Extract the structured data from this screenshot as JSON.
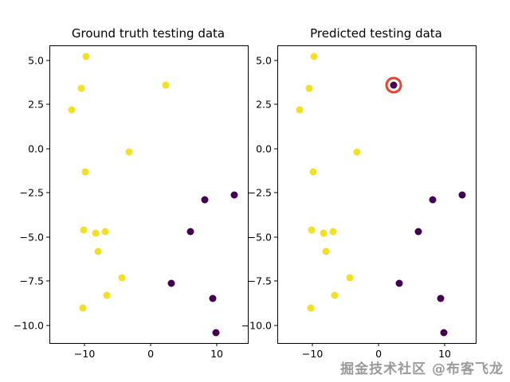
{
  "figure": {
    "background": "#ffffff",
    "watermark": {
      "text": "掘金技术社区 @布客飞龙",
      "color": "#9a9a9a"
    }
  },
  "chart_data": [
    {
      "id": "ground-truth",
      "type": "scatter",
      "title": "Ground truth testing data",
      "xlim": [
        -15.2,
        14.7
      ],
      "ylim": [
        -11.0,
        5.8
      ],
      "grid": false,
      "legend": "none",
      "xticks": [
        {
          "v": -10,
          "label": "−10"
        },
        {
          "v": 0,
          "label": "0"
        },
        {
          "v": 10,
          "label": "10"
        }
      ],
      "yticks": [
        {
          "v": 5.0,
          "label": "5.0"
        },
        {
          "v": 2.5,
          "label": "2.5"
        },
        {
          "v": 0.0,
          "label": "0.0"
        },
        {
          "v": -2.5,
          "label": "−2.5"
        },
        {
          "v": -5.0,
          "label": "−5.0"
        },
        {
          "v": -7.5,
          "label": "−7.5"
        },
        {
          "v": -10.0,
          "label": "−10.0"
        }
      ],
      "series": [
        {
          "name": "class-1-yellow",
          "color": "#f2e023",
          "points": [
            [
              -12.0,
              2.2
            ],
            [
              -9.8,
              5.2
            ],
            [
              -10.5,
              3.4
            ],
            [
              -9.9,
              -1.3
            ],
            [
              2.3,
              3.6
            ],
            [
              -3.3,
              -0.2
            ],
            [
              -10.1,
              -4.6
            ],
            [
              -8.3,
              -4.8
            ],
            [
              -6.9,
              -4.7
            ],
            [
              -8.0,
              -5.8
            ],
            [
              -4.3,
              -7.3
            ],
            [
              -10.2,
              -9.0
            ],
            [
              -6.6,
              -8.3
            ]
          ]
        },
        {
          "name": "class-0-purple",
          "color": "#440154",
          "points": [
            [
              8.2,
              -2.9
            ],
            [
              12.7,
              -2.6
            ],
            [
              6.0,
              -4.7
            ],
            [
              3.1,
              -7.6
            ],
            [
              9.4,
              -8.5
            ],
            [
              9.9,
              -10.4
            ]
          ]
        }
      ]
    },
    {
      "id": "predicted",
      "type": "scatter",
      "title": "Predicted testing data",
      "xlim": [
        -15.2,
        14.7
      ],
      "ylim": [
        -11.0,
        5.8
      ],
      "grid": false,
      "legend": "none",
      "xticks": [
        {
          "v": -10,
          "label": "−10"
        },
        {
          "v": 0,
          "label": "0"
        },
        {
          "v": 10,
          "label": "10"
        }
      ],
      "yticks": [
        {
          "v": 5.0,
          "label": "5.0"
        },
        {
          "v": 2.5,
          "label": "2.5"
        },
        {
          "v": 0.0,
          "label": "0.0"
        },
        {
          "v": -2.5,
          "label": "−2.5"
        },
        {
          "v": -5.0,
          "label": "−5.0"
        },
        {
          "v": -7.5,
          "label": "−7.5"
        },
        {
          "v": -10.0,
          "label": "−10.0"
        }
      ],
      "series": [
        {
          "name": "class-1-yellow",
          "color": "#f2e023",
          "points": [
            [
              -12.0,
              2.2
            ],
            [
              -9.8,
              5.2
            ],
            [
              -10.5,
              3.4
            ],
            [
              -9.9,
              -1.3
            ],
            [
              -3.3,
              -0.2
            ],
            [
              -10.1,
              -4.6
            ],
            [
              -8.3,
              -4.8
            ],
            [
              -6.9,
              -4.7
            ],
            [
              -8.0,
              -5.8
            ],
            [
              -4.3,
              -7.3
            ],
            [
              -10.2,
              -9.0
            ],
            [
              -6.6,
              -8.3
            ]
          ]
        },
        {
          "name": "class-0-purple",
          "color": "#440154",
          "points": [
            [
              2.3,
              3.6
            ],
            [
              8.2,
              -2.9
            ],
            [
              12.7,
              -2.6
            ],
            [
              6.0,
              -4.7
            ],
            [
              3.1,
              -7.6
            ],
            [
              9.4,
              -8.5
            ],
            [
              9.9,
              -10.4
            ]
          ]
        }
      ],
      "highlight": {
        "x": 2.3,
        "y": 3.6,
        "ring_color": "#e8432b",
        "meaning": "misclassified-point-marker"
      }
    }
  ]
}
